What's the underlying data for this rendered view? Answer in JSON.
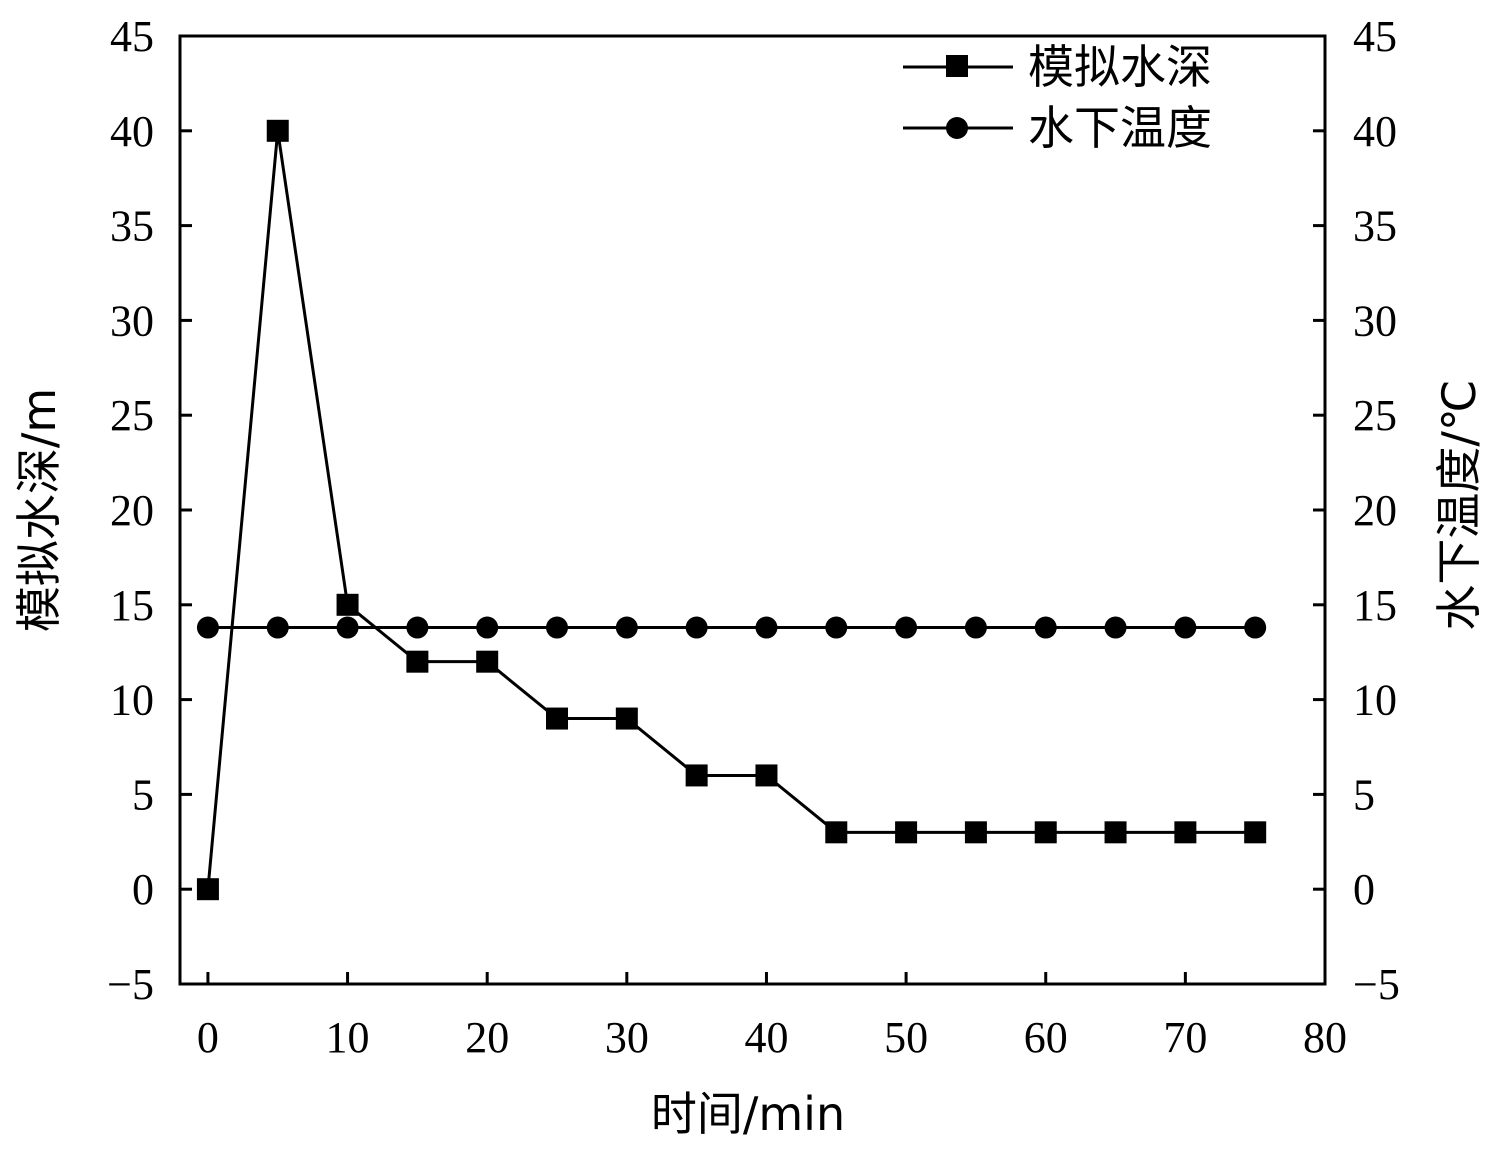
{
  "chart_data": {
    "type": "line",
    "x": [
      0,
      5,
      10,
      15,
      20,
      25,
      30,
      35,
      40,
      45,
      50,
      55,
      60,
      65,
      70,
      75
    ],
    "series": [
      {
        "name": "模拟水深",
        "marker": "square",
        "axis": "left",
        "values": [
          0,
          40,
          15,
          12,
          12,
          9,
          9,
          6,
          6,
          3,
          3,
          3,
          3,
          3,
          3,
          3
        ]
      },
      {
        "name": "水下温度",
        "marker": "circle",
        "axis": "right",
        "values": [
          13.8,
          13.8,
          13.8,
          13.8,
          13.8,
          13.8,
          13.8,
          13.8,
          13.8,
          13.8,
          13.8,
          13.8,
          13.8,
          13.8,
          13.8,
          13.8
        ]
      }
    ],
    "xlabel": "时间/min",
    "ylabel": "模拟水深/m",
    "y2label": "水下温度/℃",
    "xlim": [
      -2,
      80
    ],
    "ylim": [
      -5,
      45
    ],
    "y2lim": [
      -5,
      45
    ],
    "xticks": [
      0,
      10,
      20,
      30,
      40,
      50,
      60,
      70,
      80
    ],
    "yticks": [
      -5,
      0,
      5,
      10,
      15,
      20,
      25,
      30,
      35,
      40,
      45
    ],
    "ytick_labels": [
      "−5",
      "0",
      "5",
      "10",
      "15",
      "20",
      "25",
      "30",
      "35",
      "40",
      "45"
    ],
    "grid": false,
    "legend": "top-right",
    "color": "#000000"
  }
}
